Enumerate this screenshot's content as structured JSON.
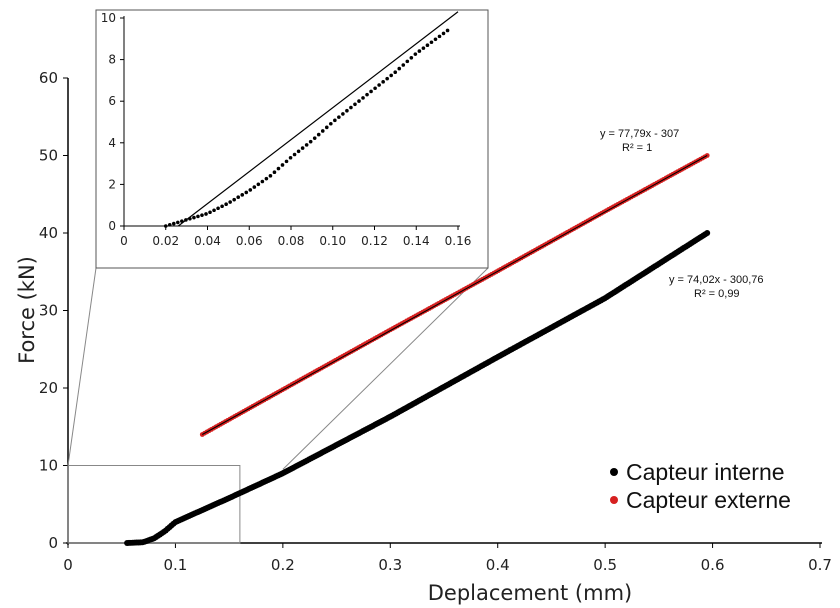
{
  "chart_data": [
    {
      "type": "scatter",
      "xlabel": "Deplacement (mm)",
      "ylabel": "Force (kN)",
      "xlim": [
        0,
        0.7
      ],
      "ylim": [
        0,
        60
      ],
      "xticks": [
        "0",
        "0.1",
        "0.2",
        "0.3",
        "0.4",
        "0.5",
        "0.6",
        "0.7"
      ],
      "yticks": [
        "0",
        "10",
        "20",
        "30",
        "40",
        "50",
        "60"
      ],
      "grid": false,
      "legend_position": "bottom-right",
      "series": [
        {
          "name": "Capteur interne",
          "color": "#000000",
          "x_range": [
            0.055,
            0.595
          ],
          "y_range": [
            0,
            40
          ],
          "points": [
            [
              0.055,
              0.0
            ],
            [
              0.07,
              0.1
            ],
            [
              0.08,
              0.6
            ],
            [
              0.09,
              1.5
            ],
            [
              0.1,
              2.7
            ],
            [
              0.15,
              5.8
            ],
            [
              0.2,
              9.0
            ],
            [
              0.3,
              16.3
            ],
            [
              0.4,
              24.0
            ],
            [
              0.5,
              31.6
            ],
            [
              0.595,
              40.0
            ]
          ],
          "trendline": {
            "equation": "y = 74,02x   - 300,76",
            "r2": "R² = 0,99"
          }
        },
        {
          "name": "Capteur externe",
          "color": "#d62020",
          "x_range": [
            0.125,
            0.595
          ],
          "y_range": [
            14,
            50
          ],
          "points": [
            [
              0.125,
              14.0
            ],
            [
              0.2,
              19.8
            ],
            [
              0.3,
              27.5
            ],
            [
              0.4,
              35.1
            ],
            [
              0.5,
              42.8
            ],
            [
              0.595,
              50.0
            ]
          ],
          "trendline": {
            "equation": "y = 77,79x   - 307",
            "r2": "R² = 1"
          }
        }
      ]
    },
    {
      "type": "scatter",
      "title": "",
      "xlim": [
        0,
        0.16
      ],
      "ylim": [
        0,
        10
      ],
      "xticks": [
        "0",
        "0.02",
        "0.04",
        "0.06",
        "0.08",
        "0.10",
        "0.12",
        "0.14",
        "0.16"
      ],
      "yticks": [
        "0",
        "2",
        "4",
        "6",
        "8",
        "10"
      ],
      "series": [
        {
          "name": "",
          "color": "#000000",
          "points": [
            [
              0.02,
              0.0
            ],
            [
              0.03,
              0.3
            ],
            [
              0.04,
              0.6
            ],
            [
              0.05,
              1.1
            ],
            [
              0.06,
              1.7
            ],
            [
              0.07,
              2.4
            ],
            [
              0.08,
              3.3
            ],
            [
              0.09,
              4.1
            ],
            [
              0.1,
              5.0
            ],
            [
              0.11,
              5.8
            ],
            [
              0.12,
              6.6
            ],
            [
              0.13,
              7.4
            ],
            [
              0.14,
              8.3
            ],
            [
              0.155,
              9.4
            ]
          ],
          "reference_line": [
            [
              0.026,
              0.0
            ],
            [
              0.16,
              10.3
            ]
          ]
        }
      ]
    }
  ]
}
